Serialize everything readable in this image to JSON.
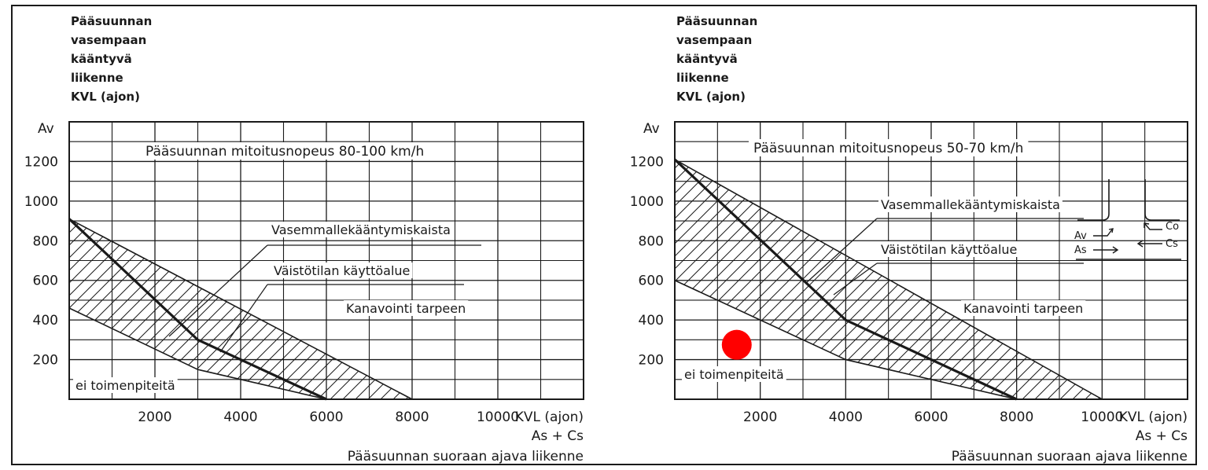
{
  "chart_data": [
    {
      "type": "area",
      "ylabel_lines": [
        "Pääsuunnan",
        "vasempaan",
        "kääntyvä",
        "liikenne",
        "KVL (ajon)"
      ],
      "y_axis_symbol": "Av",
      "title": "Pääsuunnan mitoitusnopeus 80-100 km/h",
      "xlim": [
        0,
        12000
      ],
      "ylim": [
        0,
        1400
      ],
      "x_ticks": [
        2000,
        4000,
        6000,
        8000,
        10000
      ],
      "x_tick_labels": [
        "2000",
        "4000",
        "6000",
        "8000",
        "10000"
      ],
      "y_ticks": [
        200,
        400,
        600,
        800,
        1000,
        1200
      ],
      "y_tick_labels": [
        "200",
        "400",
        "600",
        "800",
        "1000",
        "1200"
      ],
      "x_axis_unit": "KVL (ajon)",
      "x_axis_formula": "As + Cs",
      "xlabel": "Pääsuunnan suoraan ajava liikenne",
      "series": [
        {
          "name": "Vasemmallekääntymiskaista",
          "x": [
            0,
            8000
          ],
          "y": [
            910,
            0
          ]
        },
        {
          "name": "Väistötilan käyttöalue",
          "x": [
            0,
            3000,
            6000
          ],
          "y": [
            910,
            300,
            0
          ]
        },
        {
          "x": [
            0,
            3000,
            6000
          ],
          "y": [
            460,
            150,
            0
          ]
        }
      ],
      "annotations": [
        "Vasemmallekääntymiskaista",
        "Väistötilan käyttöalue",
        "Kanavointi tarpeen",
        "ei toimenpiteitä"
      ]
    },
    {
      "type": "area",
      "ylabel_lines": [
        "Pääsuunnan",
        "vasempaan",
        "kääntyvä",
        "liikenne",
        "KVL (ajon)"
      ],
      "y_axis_symbol": "Av",
      "title": "Pääsuunnan mitoitusnopeus 50-70 km/h",
      "xlim": [
        0,
        12000
      ],
      "ylim": [
        0,
        1400
      ],
      "x_ticks": [
        2000,
        4000,
        6000,
        8000,
        10000
      ],
      "x_tick_labels": [
        "2000",
        "4000",
        "6000",
        "8000",
        "10000"
      ],
      "y_ticks": [
        200,
        400,
        600,
        800,
        1000,
        1200
      ],
      "y_tick_labels": [
        "200",
        "400",
        "600",
        "800",
        "1000",
        "1200"
      ],
      "x_axis_unit": "KVL (ajon)",
      "x_axis_formula": "As + Cs",
      "xlabel": "Pääsuunnan suoraan ajava liikenne",
      "series": [
        {
          "name": "Vasemmallekääntymiskaista",
          "x": [
            0,
            10000
          ],
          "y": [
            1210,
            0
          ]
        },
        {
          "name": "Väistötilan käyttöalue",
          "x": [
            0,
            4000,
            8000
          ],
          "y": [
            1210,
            400,
            0
          ]
        },
        {
          "x": [
            0,
            4000,
            8000
          ],
          "y": [
            600,
            200,
            0
          ]
        }
      ],
      "annotations": [
        "Vasemmallekääntymiskaista",
        "Väistötilan käyttöalue",
        "Kanavointi tarpeen",
        "ei toimenpiteitä"
      ],
      "inset_labels": [
        "Av",
        "As",
        "Co",
        "Cs"
      ],
      "marker": {
        "x": 1450,
        "y": 275,
        "color": "#ff0000"
      }
    }
  ]
}
